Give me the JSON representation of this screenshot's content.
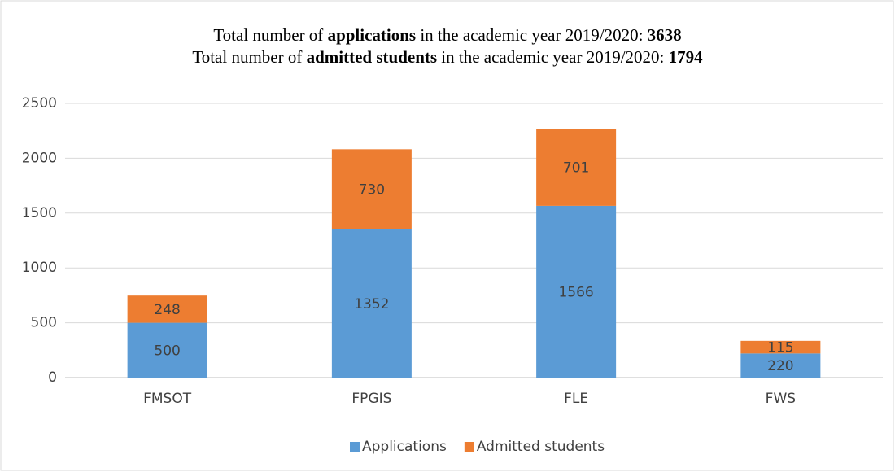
{
  "chart_data": {
    "type": "stacked_bar",
    "title": [
      [
        {
          "text": "Total number of ",
          "bold": false
        },
        {
          "text": "applications",
          "bold": true
        },
        {
          "text": " in the academic year 2019/2020: ",
          "bold": false
        },
        {
          "text": "3638",
          "bold": true
        }
      ],
      [
        {
          "text": "Total number of ",
          "bold": false
        },
        {
          "text": "admitted students",
          "bold": true
        },
        {
          "text": " in the academic year 2019/2020: ",
          "bold": false
        },
        {
          "text": "1794",
          "bold": true
        }
      ]
    ],
    "categories": [
      "FMSOT",
      "FPGIS",
      "FLE",
      "FWS"
    ],
    "series": [
      {
        "name": "Applications",
        "color": "#5b9bd5",
        "values": [
          500,
          1352,
          1566,
          220
        ]
      },
      {
        "name": "Admitted students",
        "color": "#ed7d31",
        "values": [
          248,
          730,
          701,
          115
        ]
      }
    ],
    "ylim": [
      0,
      2500
    ],
    "yticks": [
      0,
      500,
      1000,
      1500,
      2000,
      2500
    ],
    "grid": true,
    "legend": "bottom"
  }
}
